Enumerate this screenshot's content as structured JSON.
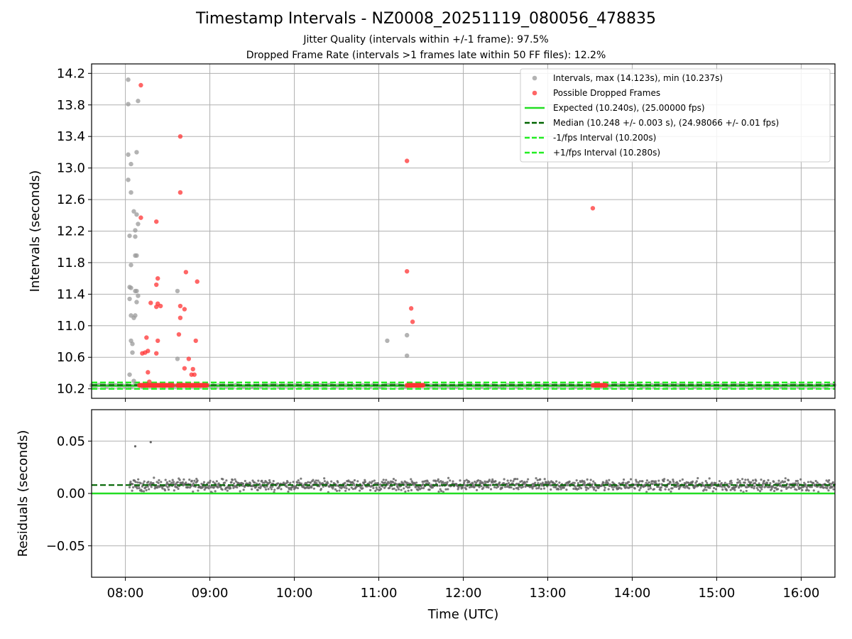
{
  "title": "Timestamp Intervals - NZ0008_20251119_080056_478835",
  "subtitle_lines": [
    "Jitter Quality (intervals within +/-1 frame): 97.5%",
    "Dropped Frame Rate (intervals >1 frames late within 50 FF files): 12.2%"
  ],
  "colors": {
    "intervals": "#999999",
    "dropped": "#ff3333",
    "expected": "#22dd22",
    "median": "#006400",
    "fps_band": "#22ee22",
    "residuals": "#666666",
    "grid": "#b0b0b0"
  },
  "chart_data": [
    {
      "type": "scatter",
      "name": "intervals-panel",
      "xlabel": "",
      "ylabel": "Intervals (seconds)",
      "x_unit": "time (UTC, hours)",
      "xlim": [
        "07:36",
        "16:24"
      ],
      "ylim": [
        10.08,
        14.32
      ],
      "yticks": [
        "10.2",
        "10.6",
        "11.0",
        "11.4",
        "11.8",
        "12.2",
        "12.6",
        "13.0",
        "13.4",
        "13.8",
        "14.2"
      ],
      "xticks": [
        "08:00",
        "09:00",
        "10:00",
        "11:00",
        "12:00",
        "13:00",
        "14:00",
        "15:00",
        "16:00"
      ],
      "grid": true,
      "legend_placement": "top-right",
      "legend": [
        {
          "label": "Intervals, max (14.123s), min (10.237s)",
          "kind": "marker",
          "color": "#999999"
        },
        {
          "label": "Possible Dropped Frames",
          "kind": "marker",
          "color": "#ff3333"
        },
        {
          "label": "Expected (10.240s), (25.00000 fps)",
          "kind": "line",
          "color": "#22dd22"
        },
        {
          "label": "Median (10.248 +/- 0.003 s), (24.98066 +/- 0.01 fps)",
          "kind": "dashed",
          "color": "#006400"
        },
        {
          "label": "-1/fps Interval (10.200s)",
          "kind": "dashed",
          "color": "#22ee22"
        },
        {
          "label": "+1/fps Interval (10.280s)",
          "kind": "dashed",
          "color": "#22ee22"
        }
      ],
      "reference_lines": {
        "expected": 10.24,
        "median": 10.248,
        "minus_fps": 10.2,
        "plus_fps": 10.28
      },
      "baseline_band": {
        "y": 10.24,
        "x_start": "07:36",
        "x_end": "16:24"
      },
      "series": [
        {
          "name": "Intervals, max (14.123s), min (10.237s)",
          "points": [
            [
              "08:02",
              14.12
            ],
            [
              "08:02",
              13.81
            ],
            [
              "08:09",
              13.85
            ],
            [
              "08:02",
              13.17
            ],
            [
              "08:08",
              13.2
            ],
            [
              "08:04",
              13.05
            ],
            [
              "08:02",
              12.85
            ],
            [
              "08:04",
              12.69
            ],
            [
              "08:06",
              12.45
            ],
            [
              "08:08",
              12.41
            ],
            [
              "08:09",
              12.29
            ],
            [
              "08:07",
              12.21
            ],
            [
              "08:03",
              12.14
            ],
            [
              "08:07",
              12.13
            ],
            [
              "08:07",
              11.89
            ],
            [
              "08:08",
              11.89
            ],
            [
              "08:04",
              11.77
            ],
            [
              "08:03",
              11.49
            ],
            [
              "08:04",
              11.48
            ],
            [
              "08:08",
              11.44
            ],
            [
              "08:07",
              11.44
            ],
            [
              "08:09",
              11.38
            ],
            [
              "08:03",
              11.34
            ],
            [
              "08:08",
              11.3
            ],
            [
              "08:04",
              11.13
            ],
            [
              "08:07",
              11.13
            ],
            [
              "08:06",
              11.1
            ],
            [
              "08:04",
              10.81
            ],
            [
              "08:05",
              10.77
            ],
            [
              "08:05",
              10.66
            ],
            [
              "08:03",
              10.38
            ],
            [
              "08:06",
              10.3
            ],
            [
              "08:37",
              11.44
            ],
            [
              "08:37",
              10.58
            ],
            [
              "11:06",
              10.81
            ],
            [
              "11:20",
              10.88
            ],
            [
              "11:20",
              10.62
            ]
          ]
        },
        {
          "name": "Possible Dropped Frames",
          "points": [
            [
              "08:11",
              14.05
            ],
            [
              "08:39",
              13.4
            ],
            [
              "08:11",
              12.37
            ],
            [
              "08:22",
              12.32
            ],
            [
              "08:39",
              12.69
            ],
            [
              "08:23",
              11.6
            ],
            [
              "08:22",
              11.52
            ],
            [
              "08:43",
              11.68
            ],
            [
              "08:51",
              11.56
            ],
            [
              "08:18",
              11.29
            ],
            [
              "08:23",
              11.28
            ],
            [
              "08:22",
              11.24
            ],
            [
              "08:25",
              11.25
            ],
            [
              "08:39",
              11.25
            ],
            [
              "08:42",
              11.21
            ],
            [
              "08:39",
              11.1
            ],
            [
              "08:15",
              10.85
            ],
            [
              "08:38",
              10.89
            ],
            [
              "08:23",
              10.81
            ],
            [
              "08:50",
              10.81
            ],
            [
              "08:16",
              10.68
            ],
            [
              "08:12",
              10.65
            ],
            [
              "08:14",
              10.66
            ],
            [
              "08:22",
              10.65
            ],
            [
              "08:45",
              10.58
            ],
            [
              "08:42",
              10.46
            ],
            [
              "08:48",
              10.45
            ],
            [
              "08:16",
              10.41
            ],
            [
              "08:47",
              10.38
            ],
            [
              "08:49",
              10.38
            ],
            [
              "08:17",
              10.29
            ],
            [
              "11:20",
              13.09
            ],
            [
              "11:20",
              11.69
            ],
            [
              "11:23",
              11.22
            ],
            [
              "11:24",
              11.05
            ],
            [
              "13:32",
              12.49
            ]
          ]
        }
      ],
      "dropped_clusters": [
        {
          "start": "08:10",
          "end": "08:34",
          "y": 10.245
        },
        {
          "start": "08:37",
          "end": "08:58",
          "y": 10.245
        },
        {
          "start": "11:20",
          "end": "11:32",
          "y": 10.245
        },
        {
          "start": "13:32",
          "end": "13:42",
          "y": 10.245
        }
      ]
    },
    {
      "type": "scatter",
      "name": "residuals-panel",
      "xlabel": "Time (UTC)",
      "ylabel": "Residuals (seconds)",
      "xlim": [
        "07:36",
        "16:24"
      ],
      "ylim": [
        -0.08,
        0.08
      ],
      "yticks": [
        "−0.05",
        "0.00",
        "0.05"
      ],
      "ytick_values": [
        -0.05,
        0.0,
        0.05
      ],
      "xticks": [
        "08:00",
        "09:00",
        "10:00",
        "11:00",
        "12:00",
        "13:00",
        "14:00",
        "15:00",
        "16:00"
      ],
      "grid": true,
      "reference_lines": {
        "zero": 0.0,
        "median_offset": 0.008
      },
      "residual_band": {
        "x_start": "08:03",
        "x_end": "16:24",
        "center": 0.008,
        "spread": 0.004
      },
      "outliers": [
        [
          "08:07",
          0.045
        ],
        [
          "08:18",
          0.049
        ]
      ]
    }
  ]
}
